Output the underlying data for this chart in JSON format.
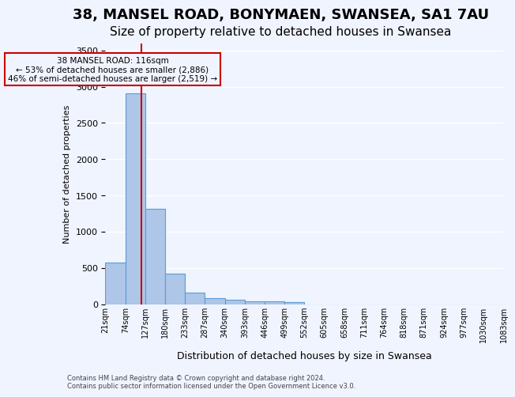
{
  "title1": "38, MANSEL ROAD, BONYMAEN, SWANSEA, SA1 7AU",
  "title2": "Size of property relative to detached houses in Swansea",
  "xlabel": "Distribution of detached houses by size in Swansea",
  "ylabel": "Number of detached properties",
  "footnote1": "Contains HM Land Registry data © Crown copyright and database right 2024.",
  "footnote2": "Contains public sector information licensed under the Open Government Licence v3.0.",
  "bin_labels": [
    "21sqm",
    "74sqm",
    "127sqm",
    "180sqm",
    "233sqm",
    "287sqm",
    "340sqm",
    "393sqm",
    "446sqm",
    "499sqm",
    "552sqm",
    "605sqm",
    "658sqm",
    "711sqm",
    "764sqm",
    "818sqm",
    "871sqm",
    "924sqm",
    "977sqm",
    "1030sqm",
    "1083sqm"
  ],
  "bar_values": [
    570,
    2910,
    1310,
    415,
    155,
    80,
    58,
    42,
    38,
    30,
    0,
    0,
    0,
    0,
    0,
    0,
    0,
    0,
    0,
    0
  ],
  "bar_color": "#aec6e8",
  "bar_edge_color": "#5b9bd5",
  "ylim": [
    0,
    3600
  ],
  "yticks": [
    0,
    500,
    1000,
    1500,
    2000,
    2500,
    3000,
    3500
  ],
  "property_label": "38 MANSEL ROAD: 116sqm",
  "annotation_line1": "← 53% of detached houses are smaller (2,886)",
  "annotation_line2": "46% of semi-detached houses are larger (2,519) →",
  "vline_color": "#cc0000",
  "annotation_box_color": "#cc0000",
  "background_color": "#f0f4ff",
  "grid_color": "#ffffff",
  "title1_fontsize": 13,
  "title2_fontsize": 11
}
